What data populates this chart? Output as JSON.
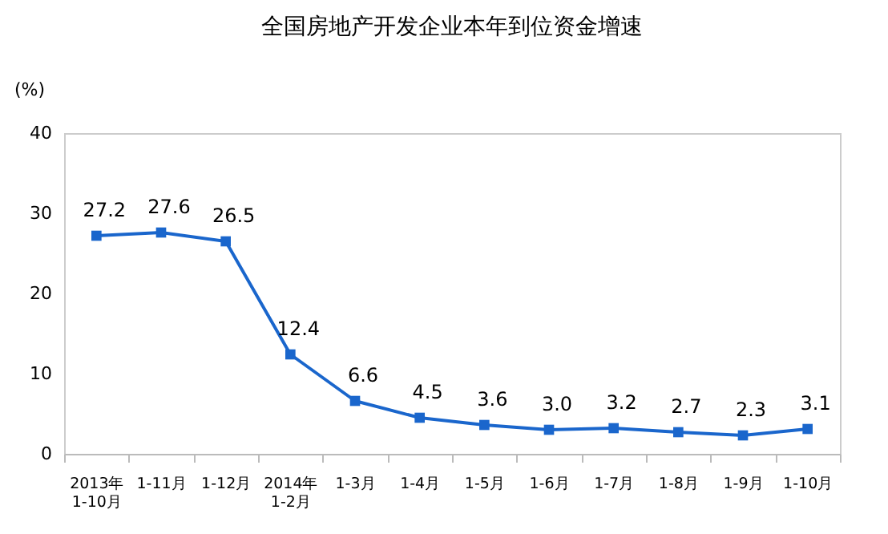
{
  "chart_data": {
    "type": "line",
    "title": "全国房地产开发企业本年到位资金增速",
    "ylabel": "(%)",
    "categories": [
      "2013年\n1-10月",
      "1-11月",
      "1-12月",
      "2014年\n1-2月",
      "1-3月",
      "1-4月",
      "1-5月",
      "1-6月",
      "1-7月",
      "1-8月",
      "1-9月",
      "1-10月"
    ],
    "series": [
      {
        "color": "#1a66cc",
        "values": [
          27.2,
          27.6,
          26.5,
          12.4,
          6.6,
          4.5,
          3.6,
          3.0,
          3.2,
          2.7,
          2.3,
          3.1
        ],
        "value_labels": [
          "27.2",
          "27.6",
          "26.5",
          "12.4",
          "6.6",
          "4.5",
          "3.6",
          "3.0",
          "3.2",
          "2.7",
          "2.3",
          "3.1"
        ]
      }
    ],
    "ylim": [
      0,
      40
    ],
    "yticks": [
      0,
      10,
      20,
      30,
      40
    ],
    "grid": false,
    "marker": "square",
    "line_style": "solid"
  }
}
